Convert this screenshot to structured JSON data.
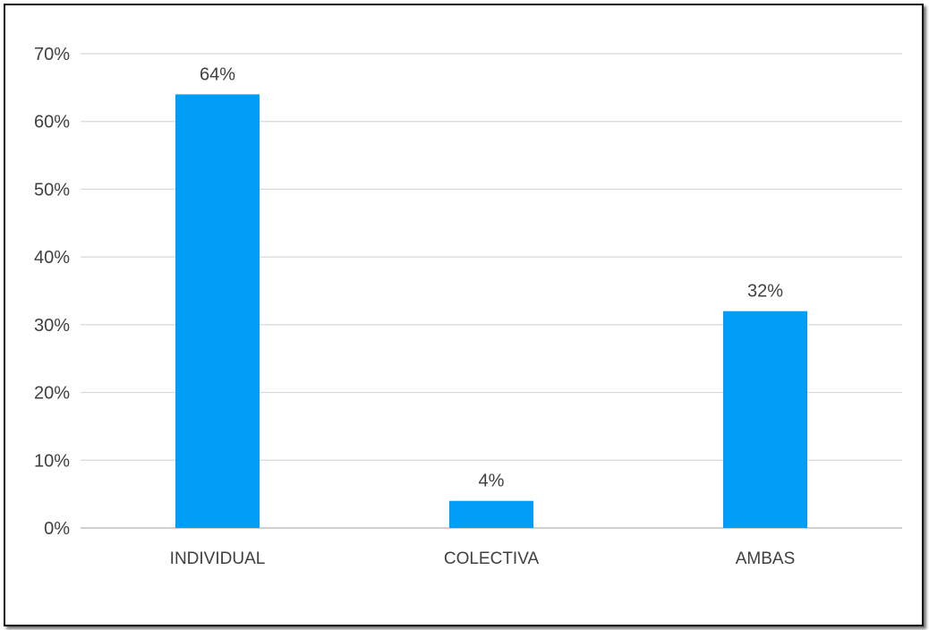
{
  "colors": {
    "bar": "#009ef7",
    "gridline": "#d9d9d9",
    "axis_line": "#bfbfbf",
    "text": "#404040",
    "frame_border": "#111111"
  },
  "chart_data": {
    "type": "bar",
    "categories": [
      "INDIVIDUAL",
      "COLECTIVA",
      "AMBAS"
    ],
    "values": [
      64,
      4,
      32
    ],
    "data_labels": [
      "64%",
      "4%",
      "32%"
    ],
    "ylim": [
      0,
      70
    ],
    "yticks": [
      0,
      10,
      20,
      30,
      40,
      50,
      60,
      70
    ],
    "ytick_labels": [
      "0%",
      "10%",
      "20%",
      "30%",
      "40%",
      "50%",
      "60%",
      "70%"
    ],
    "grid": true,
    "legend": "none",
    "title": "",
    "xlabel": "",
    "ylabel": ""
  }
}
